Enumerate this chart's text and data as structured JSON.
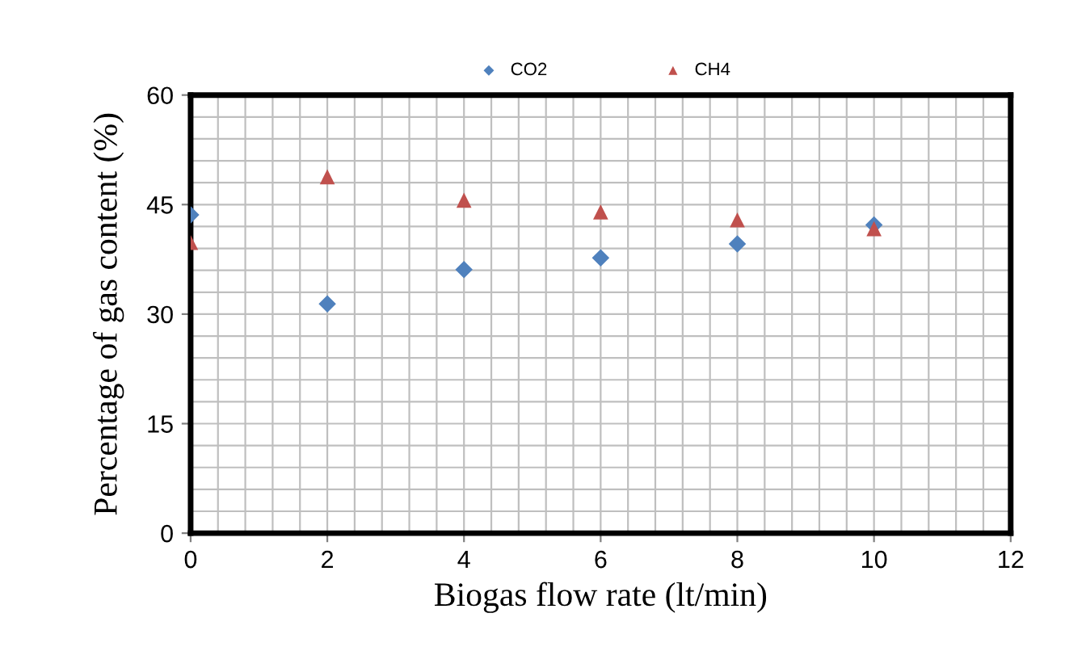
{
  "chart_data": {
    "type": "scatter",
    "xlabel": "Biogas flow rate (lt/min)",
    "ylabel": "Percentage of gas content (%)",
    "x": [
      0,
      2,
      4,
      6,
      8,
      10
    ],
    "series": [
      {
        "name": "CO2",
        "color": "#4f81bd",
        "marker": "diamond",
        "values": [
          43.6,
          31.4,
          36.1,
          37.7,
          39.6,
          42.2
        ]
      },
      {
        "name": "CH4",
        "color": "#c0504d",
        "marker": "triangle",
        "values": [
          39.8,
          48.8,
          45.6,
          44.0,
          42.9,
          41.7
        ]
      }
    ],
    "xlim": [
      0,
      12
    ],
    "xticks": [
      0,
      2,
      4,
      6,
      8,
      10,
      12
    ],
    "ylim": [
      0,
      60
    ],
    "yticks": [
      0,
      15,
      30,
      45,
      60
    ],
    "grid": true,
    "legend": "top"
  }
}
